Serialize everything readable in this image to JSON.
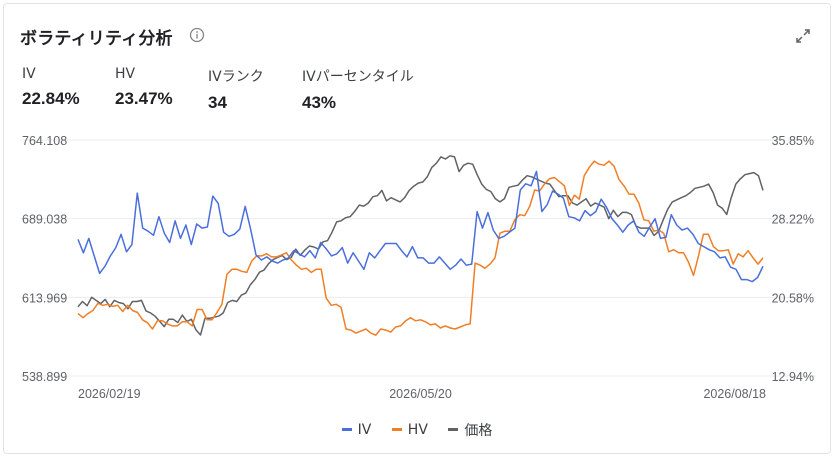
{
  "header": {
    "title": "ボラティリティ分析",
    "info_icon": "info-circle-icon",
    "expand_icon": "expand-icon"
  },
  "stats": [
    {
      "label": "IV",
      "value": "22.84%"
    },
    {
      "label": "HV",
      "value": "23.47%"
    },
    {
      "label": "IVランク",
      "value": "34"
    },
    {
      "label": "IVパーセンタイル",
      "value": "43%"
    }
  ],
  "colors": {
    "iv": "#4a6fdc",
    "hv": "#f07e26",
    "price": "#5f6368",
    "grid": "#ebebeb",
    "axis_text": "#5f6368"
  },
  "chart_data": {
    "type": "line",
    "left_axis": {
      "ticks": [
        "764.108",
        "689.038",
        "613.969",
        "538.899"
      ],
      "range": [
        538.899,
        764.108
      ]
    },
    "right_axis": {
      "ticks": [
        "35.85%",
        "28.22%",
        "20.58%",
        "12.94%"
      ],
      "range": [
        12.94,
        35.85
      ]
    },
    "x_ticks": [
      "2026/02/19",
      "2026/05/20",
      "2026/08/18"
    ],
    "legend": [
      "IV",
      "HV",
      "価格"
    ],
    "series": [
      {
        "name": "IV",
        "axis": "right",
        "values": [
          26.2,
          24.9,
          26.3,
          24.6,
          22.9,
          23.6,
          24.6,
          25.4,
          26.7,
          25.0,
          25.7,
          30.7,
          27.3,
          27.0,
          26.6,
          28.4,
          26.8,
          25.9,
          28.0,
          26.3,
          27.6,
          25.7,
          27.7,
          27.3,
          27.4,
          30.4,
          29.7,
          26.9,
          26.5,
          26.7,
          27.2,
          29.4,
          27.2,
          24.7,
          24.2,
          24.5,
          24.1,
          23.9,
          24.2,
          24.4,
          25.1,
          24.8,
          24.5,
          25.1,
          24.4,
          25.9,
          25.3,
          24.6,
          24.8,
          25.4,
          23.9,
          24.9,
          24.1,
          23.3,
          24.9,
          24.4,
          25.1,
          25.8,
          25.8,
          25.8,
          25.1,
          24.5,
          25.5,
          24.4,
          24.4,
          23.9,
          23.9,
          24.5,
          23.9,
          23.3,
          23.7,
          24.3,
          23.7,
          23.8,
          28.9,
          27.3,
          28.8,
          27.1,
          26.3,
          26.5,
          26.9,
          27.3,
          31.0,
          31.6,
          31.4,
          32.8,
          28.9,
          29.6,
          30.9,
          30.6,
          30.2,
          28.4,
          28.3,
          28.0,
          29.0,
          28.5,
          28.9,
          30.1,
          29.3,
          28.2,
          27.6,
          26.9,
          27.6,
          28.0,
          26.9,
          26.5,
          27.4,
          28.2,
          26.3,
          26.4,
          28.6,
          27.6,
          27.1,
          27.3,
          26.7,
          25.8,
          25.5,
          25.2,
          25.0,
          24.4,
          24.5,
          23.5,
          23.3,
          22.3,
          22.3,
          22.1,
          22.5,
          23.6
        ]
      },
      {
        "name": "HV",
        "axis": "right",
        "values": [
          19.0,
          18.6,
          19.0,
          19.3,
          20.0,
          19.8,
          19.9,
          19.7,
          19.8,
          19.2,
          19.8,
          19.3,
          19.1,
          18.4,
          18.1,
          17.5,
          18.3,
          18.3,
          18.0,
          17.8,
          17.8,
          18.2,
          18.2,
          17.8,
          19.4,
          19.4,
          18.4,
          18.4,
          19.1,
          19.9,
          22.8,
          23.3,
          23.3,
          23.1,
          23.0,
          24.1,
          24.6,
          24.6,
          24.8,
          24.5,
          24.5,
          24.7,
          24.9,
          24.2,
          23.7,
          23.3,
          23.4,
          23.0,
          23.3,
          23.3,
          20.5,
          19.8,
          19.9,
          19.6,
          17.5,
          17.4,
          17.1,
          17.3,
          17.5,
          17.1,
          16.9,
          17.5,
          17.4,
          17.2,
          17.7,
          17.8,
          18.3,
          18.6,
          18.3,
          18.4,
          18.2,
          17.9,
          18.0,
          17.6,
          17.8,
          17.6,
          17.5,
          17.7,
          17.9,
          18.0,
          23.9,
          23.7,
          23.4,
          23.8,
          24.4,
          26.8,
          27.0,
          27.0,
          28.1,
          28.6,
          28.5,
          29.4,
          31.0,
          30.9,
          31.6,
          32.1,
          32.2,
          31.8,
          31.4,
          29.5,
          30.5,
          30.1,
          32.4,
          33.2,
          33.8,
          33.5,
          33.4,
          33.8,
          33.3,
          32.0,
          31.4,
          30.6,
          30.6,
          29.7,
          28.1,
          28.0,
          27.0,
          27.1,
          26.8,
          25.0,
          25.2,
          24.9,
          24.9,
          24.0,
          22.7,
          24.6,
          26.7,
          26.7,
          25.5,
          25.1,
          25.1,
          25.2,
          23.8,
          24.8,
          24.5,
          25.1,
          24.4,
          23.8,
          24.4
        ]
      },
      {
        "name": "価格",
        "axis": "left",
        "values": [
          605,
          610,
          606,
          614,
          611,
          608,
          612,
          605,
          611,
          609,
          608,
          603,
          610,
          610,
          611,
          601,
          599,
          596,
          591,
          586,
          593,
          593,
          590,
          597,
          591,
          593,
          583,
          578,
          594,
          594,
          595,
          596,
          599,
          609,
          611,
          610,
          616,
          618,
          626,
          631,
          638,
          640,
          646,
          650,
          652,
          654,
          650,
          652,
          660,
          654,
          659,
          663,
          662,
          660,
          667,
          668,
          676,
          686,
          687,
          690,
          691,
          696,
          702,
          701,
          704,
          710,
          711,
          716,
          706,
          709,
          707,
          705,
          709,
          716,
          720,
          723,
          724,
          729,
          738,
          742,
          748,
          746,
          749,
          748,
          734,
          740,
          742,
          741,
          731,
          722,
          717,
          715,
          708,
          705,
          708,
          719,
          720,
          721,
          726,
          730,
          729,
          727,
          725,
          723,
          722,
          716,
          710,
          711,
          711,
          704,
          702,
          705,
          708,
          701,
          704,
          702,
          700,
          689,
          697,
          691,
          695,
          695,
          693,
          682,
          680,
          680,
          680,
          673,
          677,
          688,
          698,
          705,
          707,
          709,
          711,
          714,
          718,
          719,
          720,
          722,
          714,
          702,
          699,
          693,
          709,
          722,
          727,
          731,
          732,
          733,
          730,
          716
        ]
      }
    ]
  }
}
